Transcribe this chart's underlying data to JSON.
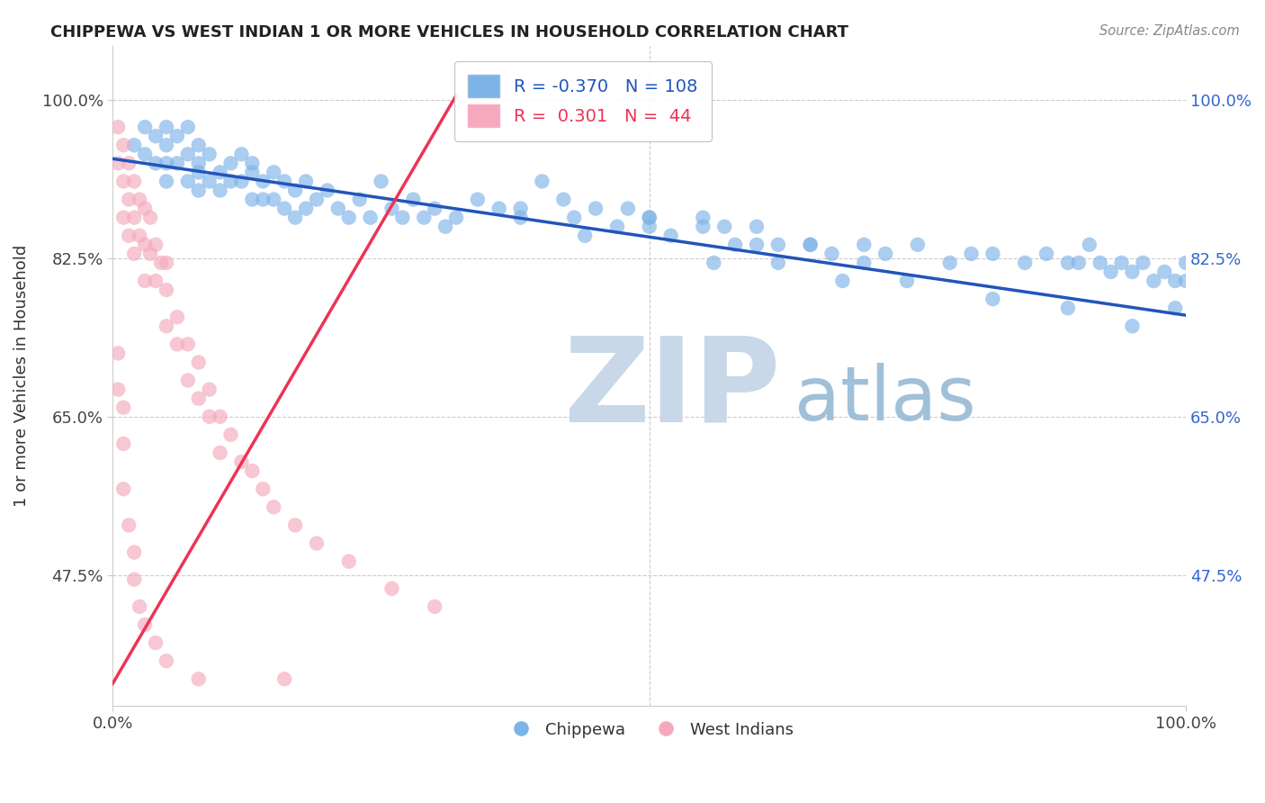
{
  "title": "CHIPPEWA VS WEST INDIAN 1 OR MORE VEHICLES IN HOUSEHOLD CORRELATION CHART",
  "source": "Source: ZipAtlas.com",
  "ylabel": "1 or more Vehicles in Household",
  "xlim": [
    0.0,
    1.0
  ],
  "ylim": [
    0.33,
    1.06
  ],
  "ytick_values": [
    0.475,
    0.65,
    0.825,
    1.0
  ],
  "ytick_labels": [
    "47.5%",
    "65.0%",
    "82.5%",
    "100.0%"
  ],
  "xtick_values": [
    0.0,
    1.0
  ],
  "xtick_labels": [
    "0.0%",
    "100.0%"
  ],
  "legend_blue_R": "-0.370",
  "legend_blue_N": "108",
  "legend_pink_R": "0.301",
  "legend_pink_N": "44",
  "blue_color": "#7EB3E8",
  "pink_color": "#F4AABC",
  "trend_blue_color": "#2255BB",
  "trend_pink_color": "#EE3355",
  "watermark_zip": "ZIP",
  "watermark_atlas": "atlas",
  "watermark_color_zip": "#C8D8E8",
  "watermark_color_atlas": "#A0C0D8",
  "background_color": "#FFFFFF",
  "blue_trend_x0": 0.0,
  "blue_trend_y0": 0.935,
  "blue_trend_x1": 1.0,
  "blue_trend_y1": 0.762,
  "pink_trend_x0": 0.0,
  "pink_trend_y0": 0.355,
  "pink_trend_x1": 0.32,
  "pink_trend_y1": 1.005,
  "chippewa_x": [
    0.02,
    0.03,
    0.03,
    0.04,
    0.04,
    0.05,
    0.05,
    0.05,
    0.05,
    0.06,
    0.06,
    0.07,
    0.07,
    0.07,
    0.08,
    0.08,
    0.08,
    0.08,
    0.09,
    0.09,
    0.1,
    0.1,
    0.11,
    0.11,
    0.12,
    0.12,
    0.13,
    0.13,
    0.13,
    0.14,
    0.14,
    0.15,
    0.15,
    0.16,
    0.16,
    0.17,
    0.17,
    0.18,
    0.18,
    0.19,
    0.2,
    0.21,
    0.22,
    0.23,
    0.24,
    0.25,
    0.26,
    0.27,
    0.28,
    0.29,
    0.3,
    0.31,
    0.32,
    0.34,
    0.36,
    0.38,
    0.4,
    0.42,
    0.43,
    0.45,
    0.47,
    0.48,
    0.5,
    0.52,
    0.55,
    0.57,
    0.58,
    0.6,
    0.62,
    0.65,
    0.67,
    0.7,
    0.72,
    0.75,
    0.78,
    0.8,
    0.82,
    0.85,
    0.87,
    0.89,
    0.9,
    0.91,
    0.92,
    0.93,
    0.94,
    0.95,
    0.96,
    0.97,
    0.98,
    0.99,
    1.0,
    1.0,
    0.5,
    0.55,
    0.6,
    0.65,
    0.7,
    0.38,
    0.44,
    0.5,
    0.56,
    0.62,
    0.68,
    0.74,
    0.82,
    0.89,
    0.95,
    0.99
  ],
  "chippewa_y": [
    0.95,
    0.97,
    0.94,
    0.96,
    0.93,
    0.97,
    0.95,
    0.93,
    0.91,
    0.96,
    0.93,
    0.94,
    0.91,
    0.97,
    0.95,
    0.92,
    0.9,
    0.93,
    0.91,
    0.94,
    0.92,
    0.9,
    0.93,
    0.91,
    0.94,
    0.91,
    0.92,
    0.89,
    0.93,
    0.91,
    0.89,
    0.92,
    0.89,
    0.91,
    0.88,
    0.9,
    0.87,
    0.91,
    0.88,
    0.89,
    0.9,
    0.88,
    0.87,
    0.89,
    0.87,
    0.91,
    0.88,
    0.87,
    0.89,
    0.87,
    0.88,
    0.86,
    0.87,
    0.89,
    0.88,
    0.87,
    0.91,
    0.89,
    0.87,
    0.88,
    0.86,
    0.88,
    0.87,
    0.85,
    0.87,
    0.86,
    0.84,
    0.86,
    0.84,
    0.84,
    0.83,
    0.84,
    0.83,
    0.84,
    0.82,
    0.83,
    0.83,
    0.82,
    0.83,
    0.82,
    0.82,
    0.84,
    0.82,
    0.81,
    0.82,
    0.81,
    0.82,
    0.8,
    0.81,
    0.8,
    0.8,
    0.82,
    0.87,
    0.86,
    0.84,
    0.84,
    0.82,
    0.88,
    0.85,
    0.86,
    0.82,
    0.82,
    0.8,
    0.8,
    0.78,
    0.77,
    0.75,
    0.77
  ],
  "westindian_x": [
    0.005,
    0.005,
    0.01,
    0.01,
    0.01,
    0.015,
    0.015,
    0.015,
    0.02,
    0.02,
    0.02,
    0.025,
    0.025,
    0.03,
    0.03,
    0.03,
    0.035,
    0.035,
    0.04,
    0.04,
    0.045,
    0.05,
    0.05,
    0.05,
    0.06,
    0.06,
    0.07,
    0.07,
    0.08,
    0.08,
    0.09,
    0.09,
    0.1,
    0.1,
    0.11,
    0.12,
    0.13,
    0.14,
    0.15,
    0.17,
    0.19,
    0.22,
    0.26,
    0.3
  ],
  "westindian_y": [
    0.97,
    0.93,
    0.95,
    0.91,
    0.87,
    0.93,
    0.89,
    0.85,
    0.91,
    0.87,
    0.83,
    0.89,
    0.85,
    0.88,
    0.84,
    0.8,
    0.87,
    0.83,
    0.84,
    0.8,
    0.82,
    0.82,
    0.79,
    0.75,
    0.76,
    0.73,
    0.73,
    0.69,
    0.71,
    0.67,
    0.68,
    0.65,
    0.65,
    0.61,
    0.63,
    0.6,
    0.59,
    0.57,
    0.55,
    0.53,
    0.51,
    0.49,
    0.46,
    0.44
  ],
  "westindian_low_x": [
    0.005,
    0.005,
    0.01,
    0.01,
    0.01,
    0.015,
    0.02,
    0.02,
    0.025,
    0.03,
    0.04,
    0.05,
    0.08,
    0.16
  ],
  "westindian_low_y": [
    0.72,
    0.68,
    0.66,
    0.62,
    0.57,
    0.53,
    0.5,
    0.47,
    0.44,
    0.42,
    0.4,
    0.38,
    0.36,
    0.36
  ]
}
